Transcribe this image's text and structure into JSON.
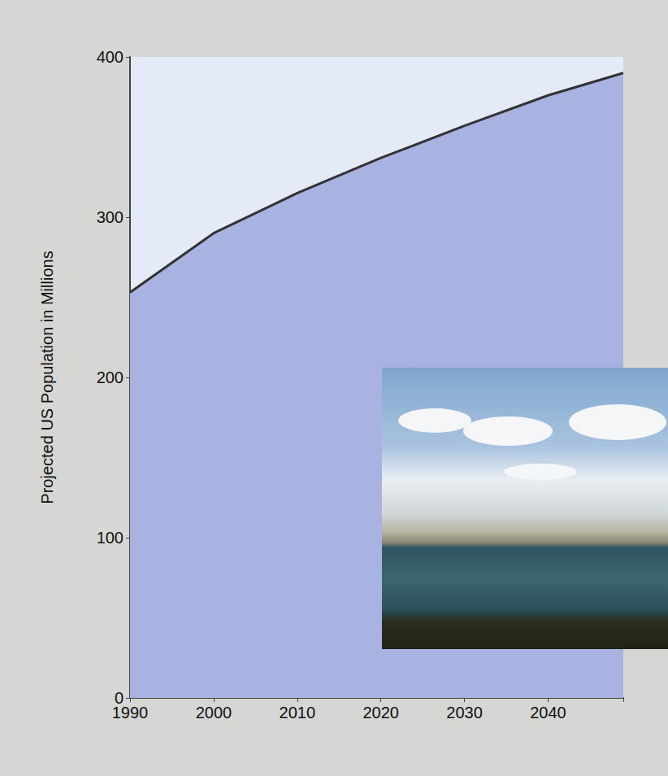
{
  "chart_data": {
    "type": "area",
    "y_label": "Projected US Population in Millions",
    "x": [
      1990,
      2000,
      2010,
      2020,
      2030,
      2040,
      2049
    ],
    "values": [
      253,
      290,
      315,
      337,
      357,
      376,
      390
    ],
    "color": "#a8b3e2",
    "xlim": [
      1990,
      2049
    ],
    "xticks": [
      1990,
      2000,
      2010,
      2020,
      2030,
      2040
    ],
    "ylim": [
      0,
      400
    ],
    "yticks": [
      0,
      100,
      200,
      300,
      400
    ],
    "grid": false
  }
}
